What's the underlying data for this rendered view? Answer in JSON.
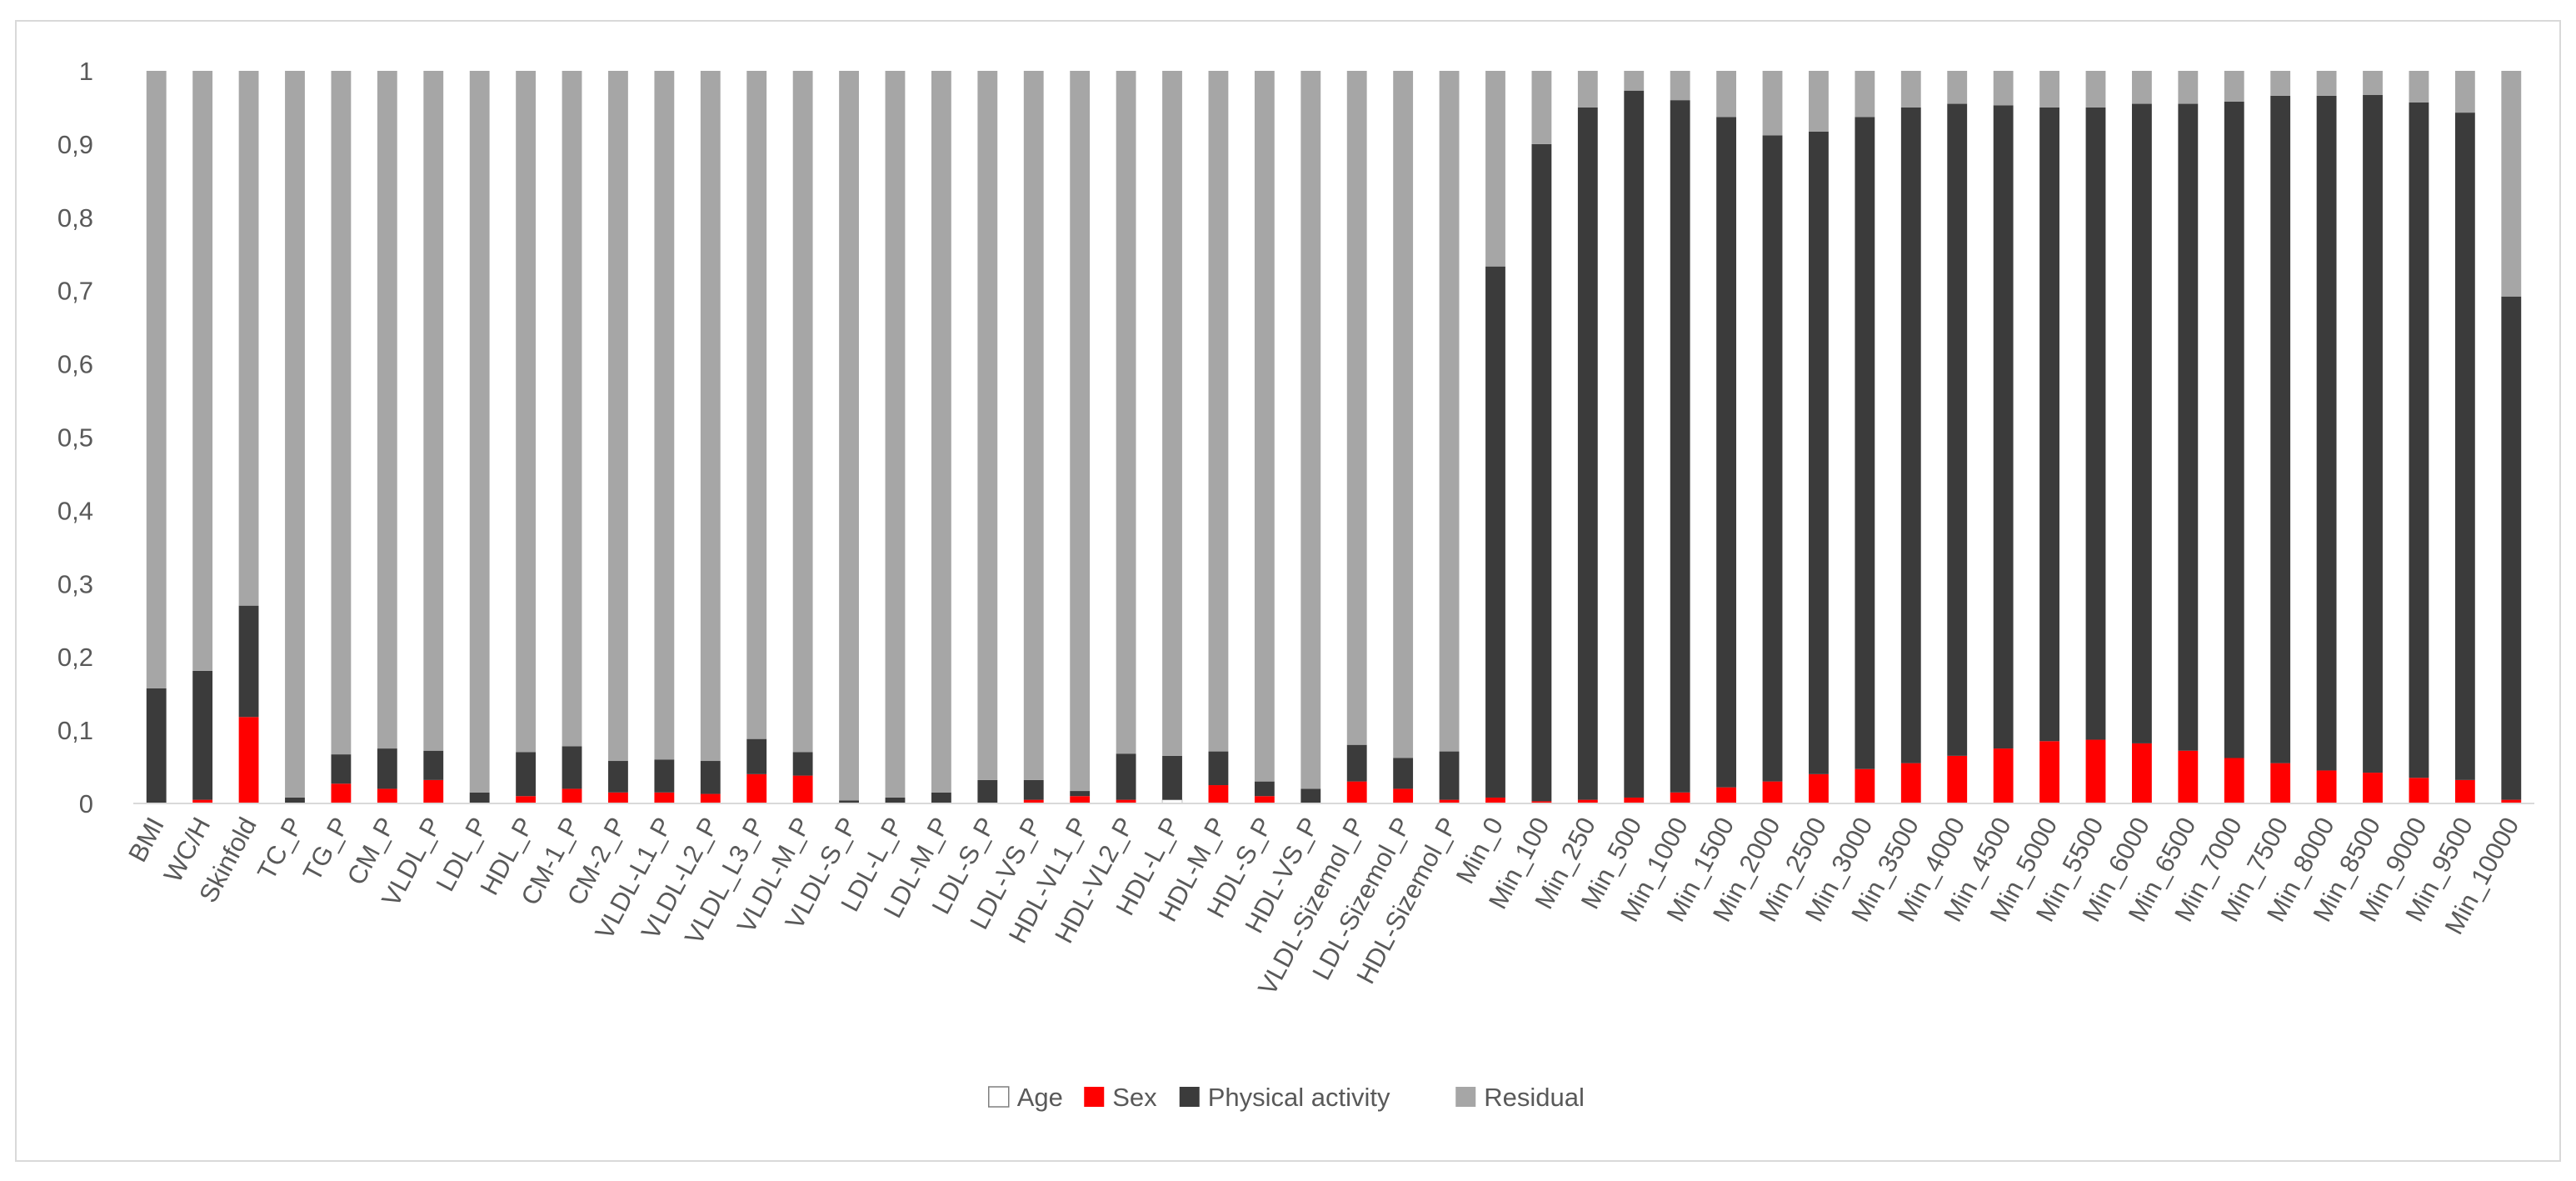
{
  "chart_data": {
    "type": "bar",
    "stacked": true,
    "title": "",
    "xlabel": "",
    "ylabel": "",
    "ylim": [
      0,
      1
    ],
    "ytick_step": 0.1,
    "ytick_labels": [
      "0",
      "0,1",
      "0,2",
      "0,3",
      "0,4",
      "0,5",
      "0,6",
      "0,7",
      "0,8",
      "0,9",
      "1"
    ],
    "grid": false,
    "legend_position": "bottom",
    "categories": [
      "BMI",
      "WC/H",
      "Skinfold",
      "TC_P",
      "TG_P",
      "CM_P",
      "VLDL_P",
      "LDL_P",
      "HDL_P",
      "CM-1_P",
      "CM-2_P",
      "VLDL-L1_P",
      "VLDL-L2_P",
      "VLDL_L3_P",
      "VLDL-M_P",
      "VLDL-S_P",
      "LDL-L_P",
      "LDL-M_P",
      "LDL-S_P",
      "LDL-VS_P",
      "HDL-VL1_P",
      "HDL-VL2_P",
      "HDL-L_P",
      "HDL-M_P",
      "HDL-S_P",
      "HDL-VS_P",
      "VLDL-Sizemol_P",
      "LDL-Sizemol_P",
      "HDL-Sizemol_P",
      "Min_0",
      "Min_100",
      "Min_250",
      "Min_500",
      "Min_1000",
      "Min_1500",
      "Min_2000",
      "Min_2500",
      "Min_3000",
      "Min_3500",
      "Min_4000",
      "Min_4500",
      "Min_5000",
      "Min_5500",
      "Min_6000",
      "Min_6500",
      "Min_7000",
      "Min_7500",
      "Min_8000",
      "Min_8500",
      "Min_9000",
      "Min_9500",
      "Min_10000"
    ],
    "series": [
      {
        "name": "Age",
        "color": "#ffffff",
        "values": [
          0,
          0,
          0,
          0,
          0,
          0,
          0,
          0,
          0,
          0,
          0,
          0,
          0,
          0,
          0,
          0,
          0,
          0,
          0,
          0,
          0,
          0,
          0.005,
          0,
          0,
          0,
          0,
          0,
          0,
          0,
          0,
          0,
          0,
          0,
          0,
          0,
          0,
          0,
          0,
          0,
          0,
          0,
          0,
          0,
          0,
          0,
          0,
          0,
          0,
          0,
          0,
          0
        ]
      },
      {
        "name": "Sex",
        "color": "#ff0000",
        "values": [
          0,
          0.005,
          0.118,
          0,
          0.027,
          0.02,
          0.032,
          0,
          0.01,
          0.02,
          0.015,
          0.015,
          0.013,
          0.04,
          0.038,
          0,
          0,
          0,
          0,
          0.005,
          0.01,
          0.005,
          0,
          0.025,
          0.01,
          0,
          0.03,
          0.02,
          0.005,
          0.008,
          0.003,
          0.005,
          0.008,
          0.015,
          0.022,
          0.03,
          0.04,
          0.047,
          0.055,
          0.065,
          0.075,
          0.085,
          0.087,
          0.082,
          0.072,
          0.062,
          0.055,
          0.045,
          0.042,
          0.035,
          0.032,
          0.005
        ]
      },
      {
        "name": "Physical activity",
        "color": "#3b3b3b",
        "values": [
          0.157,
          0.176,
          0.152,
          0.008,
          0.04,
          0.055,
          0.04,
          0.015,
          0.06,
          0.058,
          0.043,
          0.045,
          0.045,
          0.048,
          0.032,
          0.004,
          0.008,
          0.015,
          0.032,
          0.027,
          0.007,
          0.063,
          0.06,
          0.046,
          0.02,
          0.02,
          0.05,
          0.042,
          0.066,
          0.725,
          0.897,
          0.945,
          0.965,
          0.945,
          0.915,
          0.882,
          0.877,
          0.89,
          0.895,
          0.89,
          0.878,
          0.865,
          0.863,
          0.873,
          0.883,
          0.896,
          0.911,
          0.921,
          0.925,
          0.922,
          0.911,
          0.687
        ]
      },
      {
        "name": "Residual",
        "color": "#a6a6a6",
        "values": [
          0.843,
          0.819,
          0.73,
          0.992,
          0.933,
          0.925,
          0.928,
          0.985,
          0.93,
          0.922,
          0.942,
          0.94,
          0.942,
          0.912,
          0.93,
          0.996,
          0.992,
          0.985,
          0.968,
          0.968,
          0.983,
          0.932,
          0.935,
          0.929,
          0.97,
          0.98,
          0.92,
          0.938,
          0.929,
          0.267,
          0.1,
          0.05,
          0.027,
          0.04,
          0.063,
          0.088,
          0.083,
          0.063,
          0.05,
          0.045,
          0.047,
          0.05,
          0.05,
          0.045,
          0.045,
          0.042,
          0.034,
          0.034,
          0.033,
          0.043,
          0.057,
          0.308
        ]
      }
    ]
  }
}
